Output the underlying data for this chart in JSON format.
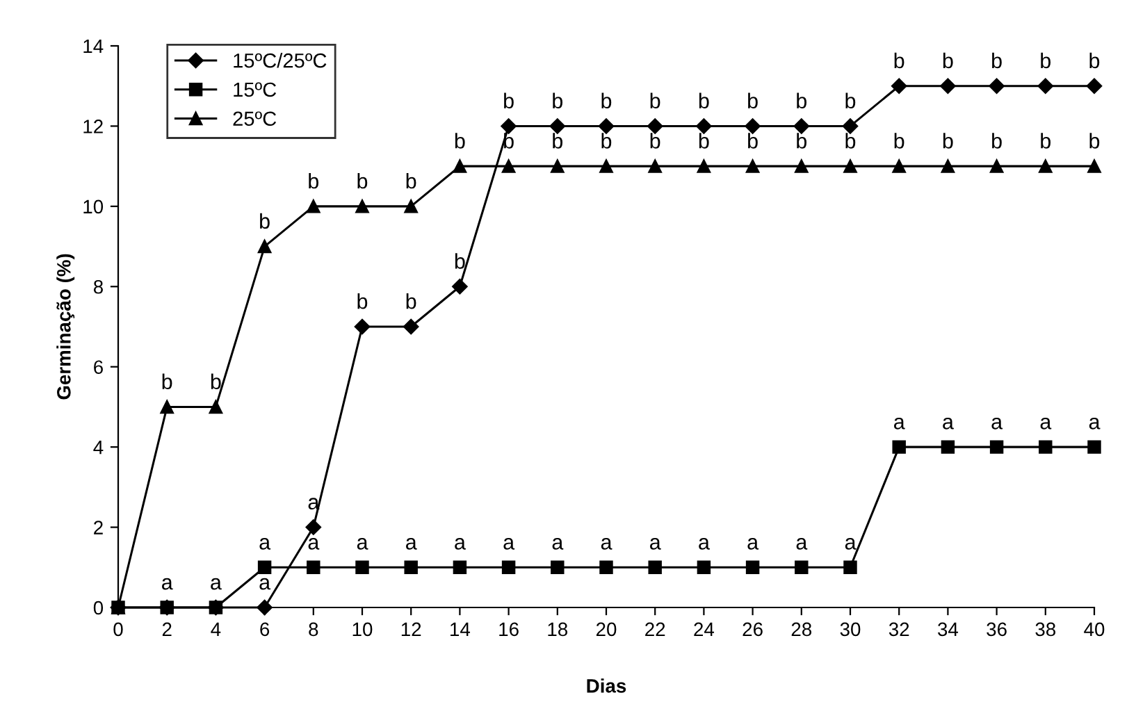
{
  "chart_data": {
    "type": "line",
    "xlabel": "Dias",
    "ylabel": "Germinação (%)",
    "x": [
      0,
      2,
      4,
      6,
      8,
      10,
      12,
      14,
      16,
      18,
      20,
      22,
      24,
      26,
      28,
      30,
      32,
      34,
      36,
      38,
      40
    ],
    "series": [
      {
        "name": "15ºC/25ºC",
        "color": "#000000",
        "marker": "diamond",
        "values": [
          0,
          0,
          0,
          0,
          2,
          7,
          7,
          8,
          12,
          12,
          12,
          12,
          12,
          12,
          12,
          12,
          13,
          13,
          13,
          13,
          13
        ],
        "value_labels": [
          null,
          "a",
          "a",
          "a",
          "a",
          "b",
          "b",
          "b",
          "b",
          "b",
          "b",
          "b",
          "b",
          "b",
          "b",
          "b",
          "b",
          "b",
          "b",
          "b",
          "b"
        ]
      },
      {
        "name": "15ºC",
        "color": "#000000",
        "marker": "square",
        "values": [
          0,
          0,
          0,
          1,
          1,
          1,
          1,
          1,
          1,
          1,
          1,
          1,
          1,
          1,
          1,
          1,
          4,
          4,
          4,
          4,
          4
        ],
        "value_labels": [
          null,
          null,
          null,
          "a",
          "a",
          "a",
          "a",
          "a",
          "a",
          "a",
          "a",
          "a",
          "a",
          "a",
          "a",
          "a",
          "a",
          "a",
          "a",
          "a",
          "a"
        ]
      },
      {
        "name": "25ºC",
        "color": "#000000",
        "marker": "triangle",
        "values": [
          0,
          5,
          5,
          9,
          10,
          10,
          10,
          11,
          11,
          11,
          11,
          11,
          11,
          11,
          11,
          11,
          11,
          11,
          11,
          11,
          11
        ],
        "value_labels": [
          null,
          "b",
          "b",
          "b",
          "b",
          "b",
          "b",
          "b",
          "b",
          "b",
          "b",
          "b",
          "b",
          "b",
          "b",
          "b",
          "b",
          "b",
          "b",
          "b",
          "b"
        ]
      }
    ],
    "xlim": [
      0,
      40
    ],
    "ylim": [
      0,
      14
    ],
    "xticks": [
      0,
      2,
      4,
      6,
      8,
      10,
      12,
      14,
      16,
      18,
      20,
      22,
      24,
      26,
      28,
      30,
      32,
      34,
      36,
      38,
      40
    ],
    "yticks": [
      0,
      2,
      4,
      6,
      8,
      10,
      12,
      14
    ],
    "grid": false,
    "legend": "top left",
    "line_style": "solid"
  }
}
